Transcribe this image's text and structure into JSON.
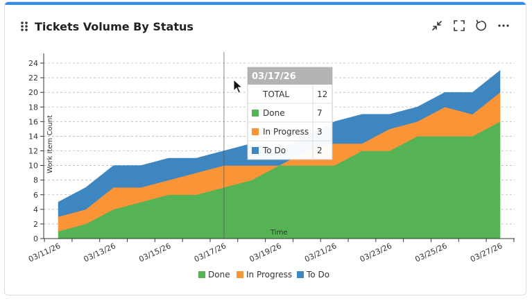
{
  "widget": {
    "title": "Tickets Volume By Status",
    "icons": [
      "drag-handle-icon",
      "collapse-icon",
      "fullscreen-icon",
      "refresh-icon",
      "more-icon"
    ]
  },
  "colors": {
    "accent": "#2f8cf0",
    "done": "#55b355",
    "in_progress": "#fb9436",
    "to_do": "#3e86c0"
  },
  "chart_data": {
    "type": "area",
    "stacked": true,
    "x": [
      "03/11/26",
      "03/12/26",
      "03/13/26",
      "03/14/26",
      "03/15/26",
      "03/16/26",
      "03/17/26",
      "03/18/26",
      "03/19/26",
      "03/20/26",
      "03/21/26",
      "03/22/26",
      "03/23/26",
      "03/24/26",
      "03/25/26",
      "03/26/26",
      "03/27/26"
    ],
    "x_tick_labels": [
      "03/11/26",
      "03/13/26",
      "03/15/26",
      "03/17/26",
      "03/19/26",
      "03/21/26",
      "03/23/26",
      "03/25/26",
      "03/27/26"
    ],
    "series": [
      {
        "name": "Done",
        "color": "#55b355",
        "values": [
          1,
          2,
          4,
          5,
          6,
          6,
          7,
          8,
          10,
          10,
          10,
          12,
          12,
          14,
          14,
          14,
          16
        ]
      },
      {
        "name": "In Progress",
        "color": "#fb9436",
        "values": [
          2,
          2,
          3,
          2,
          2,
          3,
          3,
          2,
          0,
          2,
          3,
          1,
          3,
          2,
          4,
          3,
          4
        ]
      },
      {
        "name": "To Do",
        "color": "#3e86c0",
        "values": [
          2,
          3,
          3,
          3,
          3,
          2,
          2,
          3,
          2,
          2,
          3,
          4,
          2,
          2,
          2,
          3,
          3
        ]
      }
    ],
    "xlabel": "Time",
    "ylabel": "Work Item Count",
    "ylim": [
      0,
      24
    ],
    "yticks": [
      0,
      2,
      4,
      6,
      8,
      10,
      12,
      14,
      16,
      18,
      20,
      22,
      24
    ],
    "grid": true,
    "legend_placement": "bottom-center",
    "legend": [
      "Done",
      "In Progress",
      "To Do"
    ],
    "tooltip": {
      "date": "03/17/26",
      "rows": [
        {
          "label": "TOTAL",
          "value": "12"
        },
        {
          "label": "Done",
          "value": "7"
        },
        {
          "label": "In Progress",
          "value": "3"
        },
        {
          "label": "To Do",
          "value": "2"
        }
      ]
    }
  }
}
